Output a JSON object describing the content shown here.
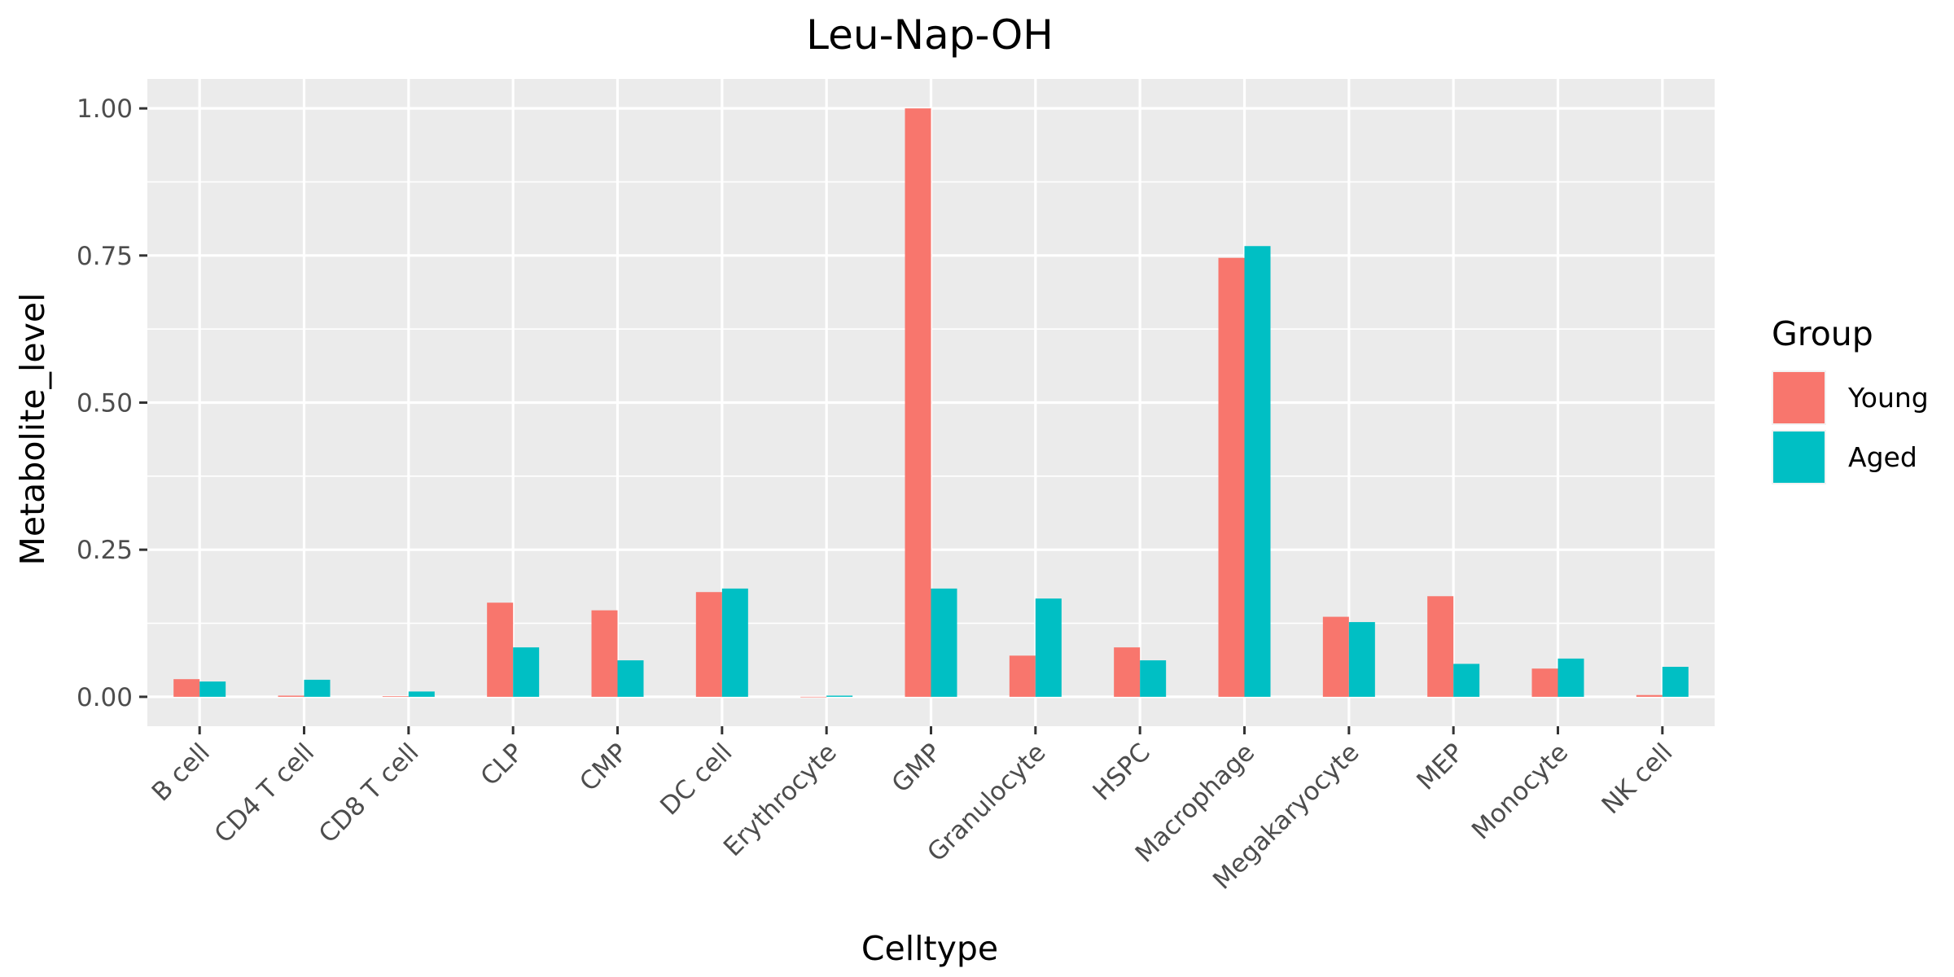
{
  "chart_data": {
    "type": "bar",
    "title": "Leu-Nap-OH",
    "xlabel": "Celltype",
    "ylabel": "Metabolite_level",
    "ylim": [
      -0.05,
      1.05
    ],
    "yticks": [
      "0.00",
      "0.25",
      "0.50",
      "0.75",
      "1.00"
    ],
    "ytick_values": [
      0,
      0.25,
      0.5,
      0.75,
      1.0
    ],
    "categories": [
      "B cell",
      "CD4 T cell",
      "CD8 T cell",
      "CLP",
      "CMP",
      "DC cell",
      "Erythrocyte",
      "GMP",
      "Granulocyte",
      "HSPC",
      "Macrophage",
      "Megakaryocyte",
      "MEP",
      "Monocyte",
      "NK cell"
    ],
    "series": [
      {
        "name": "Young",
        "color": "#F8766D",
        "values": [
          0.03,
          0.002,
          0.001,
          0.16,
          0.147,
          0.178,
          0.0,
          1.0,
          0.07,
          0.084,
          0.746,
          0.136,
          0.171,
          0.048,
          0.003
        ]
      },
      {
        "name": "Aged",
        "color": "#00BFC4",
        "values": [
          0.026,
          0.029,
          0.009,
          0.084,
          0.062,
          0.184,
          0.002,
          0.184,
          0.167,
          0.062,
          0.766,
          0.127,
          0.056,
          0.065,
          0.051
        ]
      }
    ],
    "legend": {
      "title": "Group",
      "position": "right"
    },
    "grid": true,
    "panel_color": "#EBEBEB"
  }
}
